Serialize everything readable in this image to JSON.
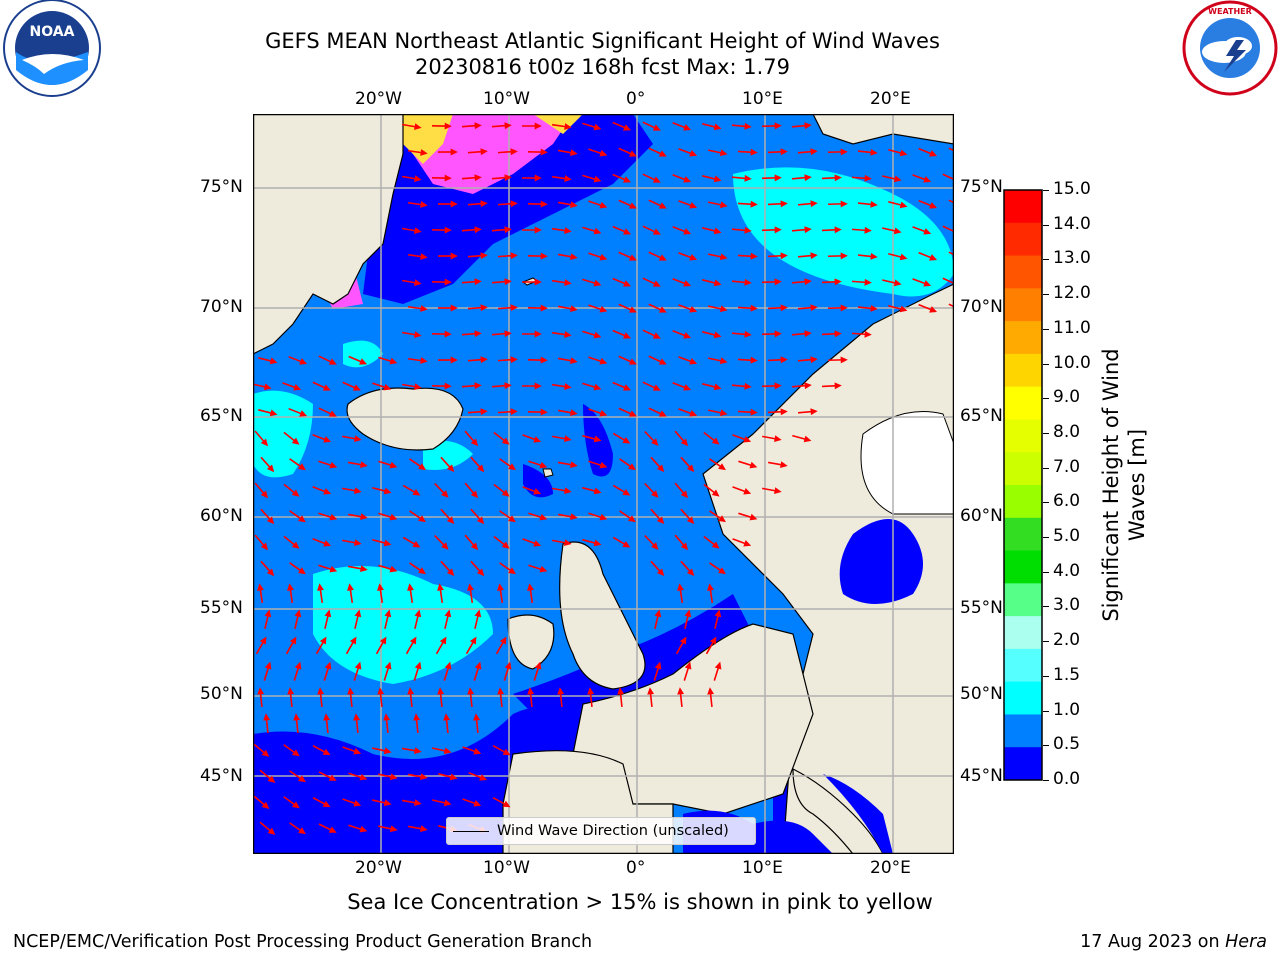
{
  "header": {
    "title_line1": "GEFS MEAN Northeast Atlantic Significant Height of Wind Waves",
    "title_line2": "20230816 t00z 168h fcst   Max: 1.79"
  },
  "logos": {
    "left": {
      "name": "noara-logo",
      "text": "NOAA",
      "ring_text": "NATIONAL OCEANIC AND ATMOSPHERIC ADMINISTRATION · U.S. DEPARTMENT OF COMMERCE"
    },
    "right": {
      "name": "nws-logo",
      "ring_text": "NATIONAL WEATHER SERVICE"
    }
  },
  "map": {
    "lon_labels_top": [
      "20°W",
      "10°W",
      "0°",
      "10°E",
      "20°E"
    ],
    "lon_labels_bottom": [
      "20°W",
      "10°W",
      "0°",
      "10°E",
      "20°E"
    ],
    "lat_labels_left": [
      "75°N",
      "70°N",
      "65°N",
      "60°N",
      "55°N",
      "50°N",
      "45°N"
    ],
    "lat_labels_right": [
      "75°N",
      "70°N",
      "65°N",
      "60°N",
      "55°N",
      "50°N",
      "45°N"
    ],
    "colors": {
      "land": "#efebdc",
      "coast": "#000000",
      "grid": "#b0b0b0",
      "arrow": "#ff0000",
      "ice_pink": "#ff55ff",
      "ice_yellow": "#ffdd44"
    },
    "legend_label": "Wind Wave Direction (unscaled)"
  },
  "colorbar": {
    "label": "Significant Height of Wind Waves [m]",
    "ticks": [
      "15.0",
      "14.0",
      "13.0",
      "12.0",
      "11.0",
      "10.0",
      "9.0",
      "8.0",
      "7.0",
      "6.0",
      "5.0",
      "4.0",
      "3.0",
      "2.0",
      "1.5",
      "1.0",
      "0.5",
      "0.0"
    ],
    "colors_top_to_bottom": [
      "#ff0000",
      "#ff2a00",
      "#ff5500",
      "#ff8000",
      "#ffaa00",
      "#ffd500",
      "#ffff00",
      "#e6ff00",
      "#ccff00",
      "#99ff00",
      "#33dd22",
      "#00dd00",
      "#55ff88",
      "#aaffee",
      "#55ffff",
      "#00ffff",
      "#0080ff",
      "#0000ff"
    ]
  },
  "caption": "Sea Ice Concentration > 15% is shown in pink to yellow",
  "footer": {
    "left": "NCEP/EMC/Verification Post Processing Product Generation Branch",
    "right_prefix": "17 Aug 2023 on ",
    "right_machine": "Hera"
  }
}
